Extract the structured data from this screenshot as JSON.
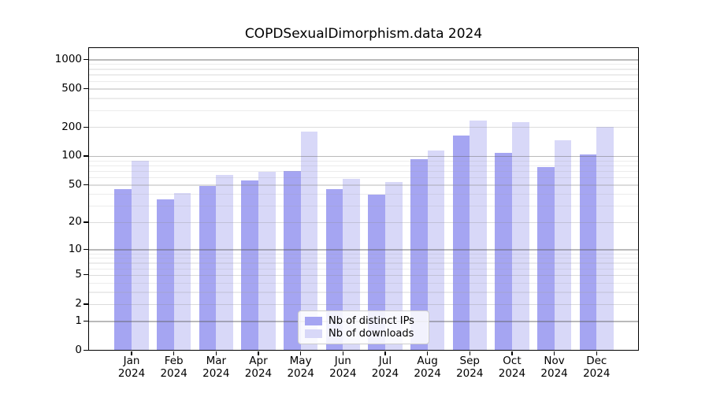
{
  "figure": {
    "title": "COPDSexualDimorphism.data 2024"
  },
  "colors": {
    "distinct_ips_bar": "#a5a5f2",
    "downloads_bar": "#d8d8f8",
    "axis": "#000000",
    "major_gridline": "#b5b5b5",
    "minor_gridline": "#e8e8e8"
  },
  "legend": {
    "items": [
      {
        "label": "Nb of distinct IPs",
        "color": "#a5a5f2"
      },
      {
        "label": "Nb of downloads",
        "color": "#d8d8f8"
      }
    ]
  },
  "chart_data": {
    "type": "bar",
    "title": "COPDSexualDimorphism.data 2024",
    "categories": [
      "Jan 2024",
      "Feb 2024",
      "Mar 2024",
      "Apr 2024",
      "May 2024",
      "Jun 2024",
      "Jul 2024",
      "Aug 2024",
      "Sep 2024",
      "Oct 2024",
      "Nov 2024",
      "Dec 2024"
    ],
    "series": [
      {
        "name": "Nb of distinct IPs",
        "color": "#a5a5f2",
        "values": [
          45,
          35,
          49,
          56,
          70,
          45,
          39,
          93,
          162,
          107,
          76,
          104
        ]
      },
      {
        "name": "Nb of downloads",
        "color": "#d8d8f8",
        "values": [
          89,
          41,
          63,
          68,
          178,
          58,
          53,
          115,
          232,
          223,
          145,
          202
        ]
      }
    ],
    "xlabel": "",
    "ylabel": "",
    "y_scale": "log1p",
    "y_ticks": [
      0,
      1,
      2,
      5,
      10,
      20,
      50,
      100,
      200,
      500,
      1000
    ],
    "ylim": [
      0,
      1340
    ],
    "grid": true,
    "legend_position": "inside-bottom-center"
  }
}
